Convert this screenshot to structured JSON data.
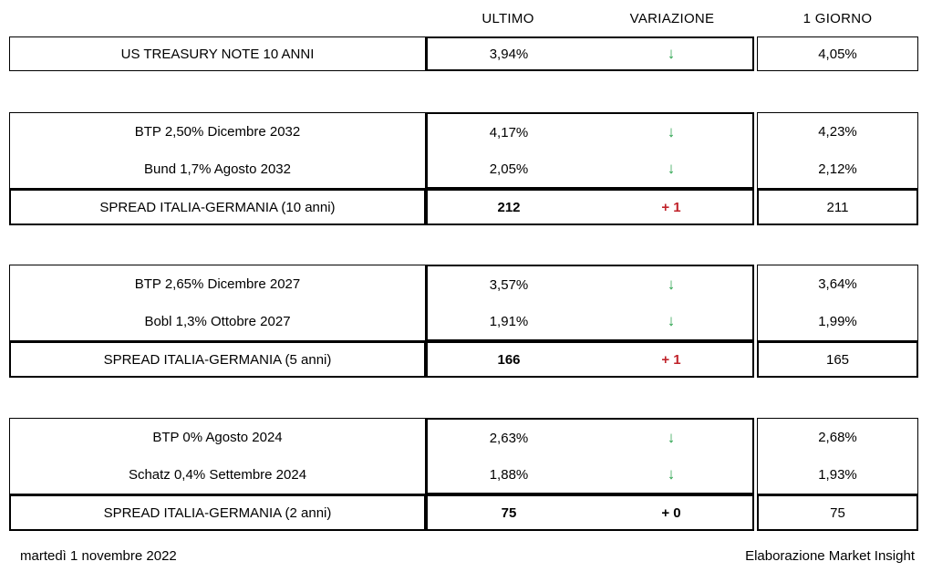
{
  "header": {
    "col_last": "ULTIMO",
    "col_change": "VARIAZIONE",
    "col_prev": "1 GIORNO"
  },
  "icons": {
    "down_arrow": "↓"
  },
  "colors": {
    "arrow_green": "#28A24C",
    "change_red": "#C0222A",
    "change_black": "#000000"
  },
  "blocks": [
    {
      "rows": [
        {
          "label": "US TREASURY NOTE 10 ANNI",
          "last": "3,94%",
          "direction": "down",
          "prev": "4,05%"
        }
      ]
    },
    {
      "rows": [
        {
          "label": "BTP 2,50% Dicembre 2032",
          "last": "4,17%",
          "direction": "down",
          "prev": "4,23%"
        },
        {
          "label": "Bund 1,7% Agosto 2032",
          "last": "2,05%",
          "direction": "down",
          "prev": "2,12%"
        }
      ],
      "spread": {
        "label": "SPREAD ITALIA-GERMANIA (10 anni)",
        "last": "212",
        "change": "+ 1",
        "change_color": "#C0222A",
        "prev": "211"
      }
    },
    {
      "rows": [
        {
          "label": "BTP 2,65% Dicembre 2027",
          "last": "3,57%",
          "direction": "down",
          "prev": "3,64%"
        },
        {
          "label": "Bobl 1,3% Ottobre 2027",
          "last": "1,91%",
          "direction": "down",
          "prev": "1,99%"
        }
      ],
      "spread": {
        "label": "SPREAD ITALIA-GERMANIA (5 anni)",
        "last": "166",
        "change": "+ 1",
        "change_color": "#C0222A",
        "prev": "165"
      }
    },
    {
      "rows": [
        {
          "label": "BTP 0% Agosto 2024",
          "last": "2,63%",
          "direction": "down",
          "prev": "2,68%"
        },
        {
          "label": "Schatz 0,4% Settembre 2024",
          "last": "1,88%",
          "direction": "down",
          "prev": "1,93%"
        }
      ],
      "spread": {
        "label": "SPREAD ITALIA-GERMANIA (2 anni)",
        "last": "75",
        "change": "+ 0",
        "change_color": "#000000",
        "prev": "75"
      }
    }
  ],
  "footer": {
    "date": "martedì 1 novembre 2022",
    "credit": "Elaborazione Market Insight"
  }
}
